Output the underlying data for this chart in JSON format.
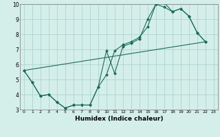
{
  "xlabel": "Humidex (Indice chaleur)",
  "bg_color": "#d4eeea",
  "grid_color": "#aed4ce",
  "line_color": "#1a6b5a",
  "xlim": [
    -0.5,
    23.5
  ],
  "ylim": [
    3,
    10
  ],
  "xticks": [
    0,
    1,
    2,
    3,
    4,
    5,
    6,
    7,
    8,
    9,
    10,
    11,
    12,
    13,
    14,
    15,
    16,
    17,
    18,
    19,
    20,
    21,
    22,
    23
  ],
  "yticks": [
    3,
    4,
    5,
    6,
    7,
    8,
    9,
    10
  ],
  "line1_x": [
    0,
    1,
    2,
    3,
    4,
    5,
    6,
    7,
    8,
    9,
    10,
    11,
    12,
    13,
    14,
    15,
    16,
    17,
    18,
    19,
    20,
    21,
    22
  ],
  "line1_y": [
    5.6,
    4.8,
    3.9,
    4.0,
    3.5,
    3.1,
    3.3,
    3.3,
    3.3,
    4.5,
    6.9,
    5.4,
    7.2,
    7.4,
    7.7,
    9.0,
    10.0,
    10.1,
    9.5,
    9.7,
    9.2,
    8.1,
    7.5
  ],
  "line2_x": [
    0,
    1,
    2,
    3,
    4,
    5,
    6,
    7,
    8,
    9,
    10,
    11,
    12,
    13,
    14,
    15,
    16,
    17,
    18,
    19,
    20,
    21,
    22
  ],
  "line2_y": [
    5.6,
    4.8,
    3.9,
    4.0,
    3.5,
    3.1,
    3.3,
    3.3,
    3.3,
    4.5,
    5.3,
    6.9,
    7.3,
    7.5,
    7.8,
    8.5,
    10.0,
    9.8,
    9.5,
    9.7,
    9.2,
    8.1,
    7.5
  ],
  "line3_x": [
    0,
    22
  ],
  "line3_y": [
    5.6,
    7.5
  ],
  "marker_size": 2.5
}
